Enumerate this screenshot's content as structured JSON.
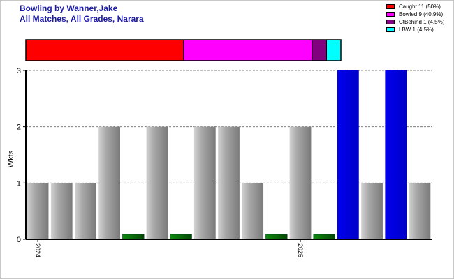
{
  "title": "Bowling by Wanner,Jake",
  "subtitle": "All Matches, All Grades, Narara",
  "legend": [
    {
      "label": "Caught 11 (50%)",
      "color": "#ff0000"
    },
    {
      "label": "Bowled 9 (40.9%)",
      "color": "#ff00ff"
    },
    {
      "label": "CtBehind 1 (4.5%)",
      "color": "#800080"
    },
    {
      "label": "LBW 1 (4.5%)",
      "color": "#00ffff"
    }
  ],
  "chart_data": [
    {
      "type": "bar",
      "title": "",
      "stacked_percent": [
        {
          "name": "Caught",
          "value": 11,
          "color": "#ff0000"
        },
        {
          "name": "Bowled",
          "value": 9,
          "color": "#ff00ff"
        },
        {
          "name": "CtBehind",
          "value": 1,
          "color": "#800080"
        },
        {
          "name": "LBW",
          "value": 1,
          "color": "#00ffff"
        }
      ]
    },
    {
      "type": "bar",
      "ylabel": "Wkts",
      "xlabel": "",
      "ylim": [
        0,
        3
      ],
      "yticks": [
        0,
        1,
        2,
        3
      ],
      "grid": true,
      "x_tick_labels": [
        {
          "label": "2024",
          "at_index": 0
        },
        {
          "label": "2025",
          "at_index": 11
        }
      ],
      "values": [
        1,
        1,
        1,
        2,
        0,
        2,
        0,
        2,
        2,
        1,
        0,
        2,
        0,
        3,
        1,
        3,
        1
      ],
      "bar_colors": [
        "gray",
        "gray",
        "gray",
        "gray",
        "green",
        "gray",
        "green",
        "gray",
        "gray",
        "gray",
        "green",
        "gray",
        "green",
        "blue",
        "gray",
        "blue",
        "gray"
      ]
    }
  ],
  "colors": {
    "gray": "#a0a0a0",
    "green": "#0a6a0a",
    "blue": "#0000dd",
    "title": "#1a1aa6"
  }
}
